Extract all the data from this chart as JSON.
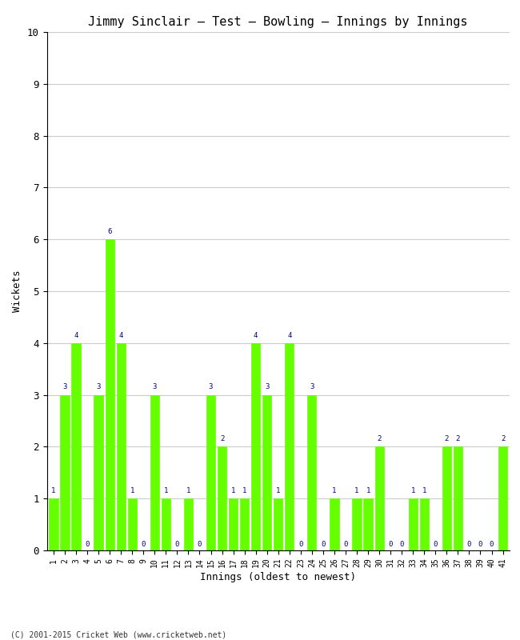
{
  "title": "Jimmy Sinclair – Test – Bowling – Innings by Innings",
  "xlabel": "Innings (oldest to newest)",
  "ylabel": "Wickets",
  "footnote": "(C) 2001-2015 Cricket Web (www.cricketweb.net)",
  "bar_color": "#66FF00",
  "bar_edge_color": "#66FF00",
  "label_color": "#00008B",
  "background_color": "#FFFFFF",
  "grid_color": "#CCCCCC",
  "ylim": [
    0,
    10
  ],
  "yticks": [
    0,
    1,
    2,
    3,
    4,
    5,
    6,
    7,
    8,
    9,
    10
  ],
  "innings": [
    1,
    2,
    3,
    4,
    5,
    6,
    7,
    8,
    9,
    10,
    11,
    12,
    13,
    14,
    15,
    16,
    17,
    18,
    19,
    20,
    21,
    22,
    23,
    24,
    25,
    26,
    27,
    28,
    29,
    30,
    31,
    32,
    33,
    34,
    35,
    36,
    37,
    38,
    39,
    40,
    41
  ],
  "wickets": [
    1,
    3,
    4,
    0,
    3,
    6,
    4,
    1,
    0,
    3,
    1,
    0,
    1,
    0,
    3,
    2,
    1,
    1,
    4,
    3,
    1,
    4,
    0,
    3,
    0,
    1,
    0,
    1,
    1,
    2,
    0,
    0,
    1,
    1,
    0,
    2,
    2,
    0,
    0,
    0,
    2
  ]
}
